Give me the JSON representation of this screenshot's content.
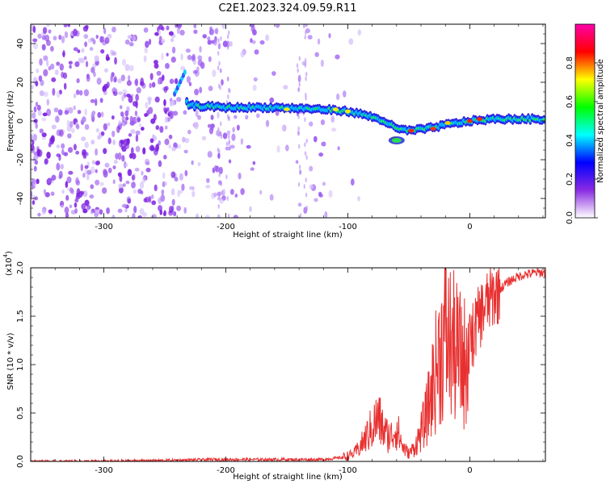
{
  "title": "C2E1.2023.324.09.59.R11",
  "chart_data": [
    {
      "type": "heatmap",
      "xlabel": "Height of straight line (km)",
      "ylabel": "Frequency (Hz)",
      "xlim": [
        -360,
        62
      ],
      "ylim": [
        -50,
        50
      ],
      "x_ticks": [
        -300,
        -200,
        -100,
        0
      ],
      "x_tick_labels": [
        "-300",
        "-200",
        "-100",
        "0"
      ],
      "y_ticks": [
        -40,
        -20,
        0,
        20,
        40
      ],
      "y_tick_labels": [
        "-40",
        "-20",
        "0",
        "20",
        "40"
      ],
      "colorbar": {
        "label": "Normalized spectral amplitude",
        "range": [
          0,
          1
        ],
        "ticks": [
          0.0,
          0.2,
          0.4,
          0.6,
          0.8
        ],
        "tick_labels": [
          "0.0",
          "0.2",
          "0.4",
          "0.6",
          "0.8"
        ],
        "colors": [
          "#ffffff",
          "#8a2be2",
          "#0000ff",
          "#00ffff",
          "#00ff00",
          "#ffff00",
          "#ff0000",
          "#ff00aa"
        ]
      },
      "signal_ridge": [
        {
          "x": -240,
          "y": 18
        },
        {
          "x": -230,
          "y": 8
        },
        {
          "x": -200,
          "y": 7
        },
        {
          "x": -160,
          "y": 7
        },
        {
          "x": -120,
          "y": 6
        },
        {
          "x": -100,
          "y": 5
        },
        {
          "x": -85,
          "y": 3
        },
        {
          "x": -70,
          "y": 0
        },
        {
          "x": -60,
          "y": -4
        },
        {
          "x": -50,
          "y": -5
        },
        {
          "x": -35,
          "y": -4
        },
        {
          "x": -20,
          "y": -2
        },
        {
          "x": 0,
          "y": 0
        },
        {
          "x": 20,
          "y": 1
        },
        {
          "x": 40,
          "y": 1
        },
        {
          "x": 62,
          "y": 1
        }
      ]
    },
    {
      "type": "line",
      "xlabel": "Height of straight line (km)",
      "ylabel": "SNR (10 * v/v)",
      "y_multiplier": "(x10",
      "y_multiplier_exponent": "4",
      "xlim": [
        -360,
        62
      ],
      "ylim": [
        0,
        2.0
      ],
      "x_ticks": [
        -300,
        -200,
        -100,
        0
      ],
      "x_tick_labels": [
        "-300",
        "-200",
        "-100",
        "0"
      ],
      "y_ticks": [
        0.0,
        0.5,
        1.0,
        1.5,
        2.0
      ],
      "y_tick_labels": [
        "0.0",
        "0.5",
        "1.0",
        "1.5",
        "2.0"
      ],
      "color": "#e83030",
      "series": [
        {
          "x": [
            -360,
            -300,
            -250,
            -210,
            -180,
            -150,
            -120,
            -105,
            -95,
            -90,
            -85,
            -80,
            -75,
            -70,
            -65,
            -60,
            -55,
            -50,
            -45,
            -40,
            -35,
            -30,
            -25,
            -20,
            -15,
            -10,
            -5,
            0,
            5,
            10,
            15,
            20,
            25,
            30,
            35,
            40,
            45,
            50,
            55,
            62
          ],
          "y": [
            0.0,
            0.0,
            0.01,
            0.02,
            0.02,
            0.02,
            0.02,
            0.04,
            0.08,
            0.15,
            0.25,
            0.35,
            0.45,
            0.3,
            0.25,
            0.35,
            0.15,
            0.08,
            0.15,
            0.3,
            0.5,
            0.8,
            1.1,
            1.3,
            1.2,
            1.1,
            1.0,
            1.2,
            1.4,
            1.55,
            1.65,
            1.72,
            1.78,
            1.84,
            1.88,
            1.91,
            1.93,
            1.94,
            1.95,
            1.95
          ]
        }
      ]
    }
  ]
}
